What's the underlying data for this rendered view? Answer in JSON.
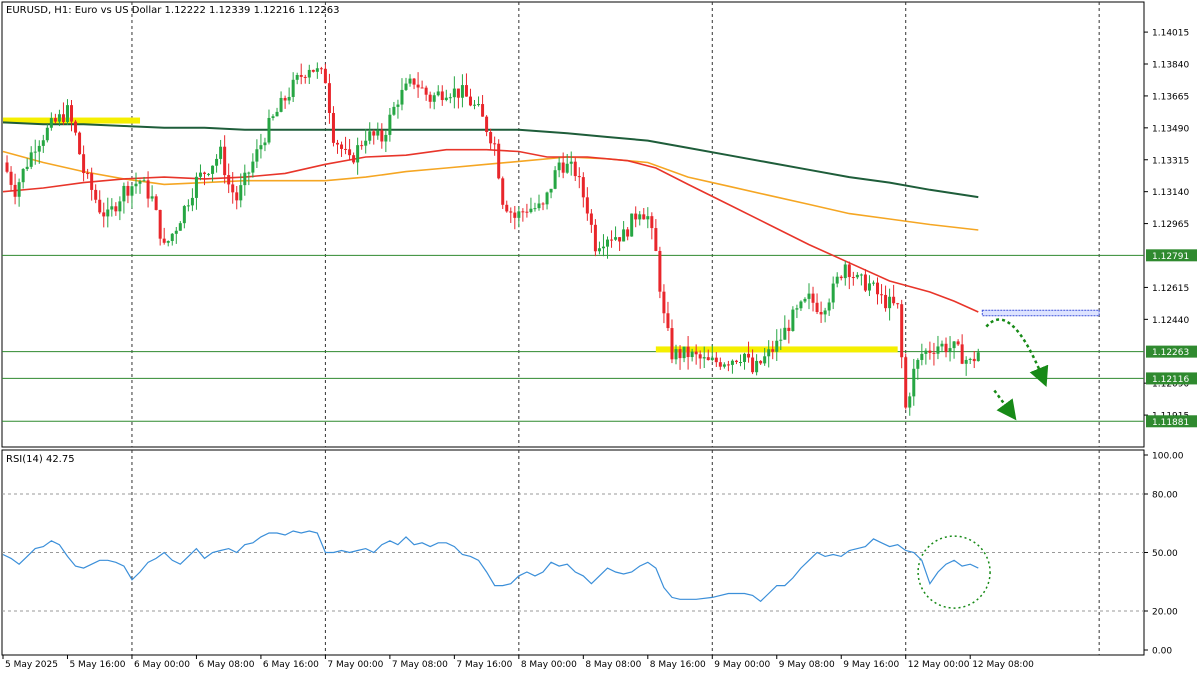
{
  "header": {
    "symbol_info": "EURUSD, H1:  Euro vs US Dollar  1.12222 1.12339 1.12216 1.12263"
  },
  "rsi": {
    "label": "RSI(14) 42.75",
    "ylim": [
      0,
      100
    ],
    "ticks": [
      "100.00",
      "80.00",
      "50.00",
      "20.00",
      "0.00"
    ],
    "tick_values": [
      100,
      80,
      50,
      20,
      0
    ],
    "levels": [
      80,
      50,
      20
    ]
  },
  "colors": {
    "bull": "#26a643",
    "bear": "#e8262b",
    "ma_fast": "#e8352a",
    "ma_mid": "#f5a623",
    "ma_slow": "#1e5d3a",
    "rsi": "#3b8fd9",
    "hline": "#2f8a2f",
    "zone": "#f5ef00",
    "label_bg": "#2f8a2f",
    "arrow": "#178a17",
    "blue_zone": "#3b4fd9"
  },
  "chart_data": {
    "type": "candlestick",
    "price_axis": {
      "ylim": [
        1.1174,
        1.1418
      ],
      "tick_labels": [
        "1.14015",
        "1.13840",
        "1.13665",
        "1.13490",
        "1.13315",
        "1.13140",
        "1.12965",
        "1.12615",
        "1.12440",
        "1.12090",
        "1.11915"
      ],
      "tick_values": [
        1.14015,
        1.1384,
        1.13665,
        1.1349,
        1.13315,
        1.1314,
        1.12965,
        1.12615,
        1.1244,
        1.1209,
        1.11915
      ]
    },
    "time_axis": {
      "bars": 165,
      "labels": [
        {
          "bar": 0,
          "text": "5 May 2025"
        },
        {
          "bar": 16,
          "text": "5 May 16:00"
        },
        {
          "bar": 32,
          "text": "6 May 00:00"
        },
        {
          "bar": 48,
          "text": "6 May 08:00"
        },
        {
          "bar": 64,
          "text": "6 May 16:00"
        },
        {
          "bar": 80,
          "text": "7 May 00:00"
        },
        {
          "bar": 96,
          "text": "7 May 08:00"
        },
        {
          "bar": 112,
          "text": "7 May 16:00"
        },
        {
          "bar": 128,
          "text": "8 May 00:00"
        },
        {
          "bar": 144,
          "text": "8 May 08:00"
        },
        {
          "bar": 160,
          "text": "8 May 16:00"
        },
        {
          "bar": 176,
          "text": "9 May 00:00"
        },
        {
          "bar": 192,
          "text": "9 May 08:00"
        },
        {
          "bar": 208,
          "text": "9 May 16:00"
        },
        {
          "bar": 224,
          "text": "12 May 00:00"
        },
        {
          "bar": 240,
          "text": "12 May 08:00"
        }
      ],
      "day_separators": [
        32,
        80,
        128,
        176,
        224,
        272
      ]
    },
    "horizontal_levels": [
      {
        "price": 1.12791,
        "label": "1.12791"
      },
      {
        "price": 1.12263,
        "label": "1.12263"
      },
      {
        "price": 1.12116,
        "label": "1.12116"
      },
      {
        "price": 1.11881,
        "label": "1.11881"
      }
    ],
    "zones": [
      {
        "from_bar": 0,
        "to_bar": 34,
        "price": 1.1353
      },
      {
        "from_bar": 162,
        "to_bar": 222,
        "price": 1.12275
      }
    ],
    "projected_zone": {
      "from_bar": 243,
      "to_bar": 272,
      "top": 1.1249,
      "bottom": 1.1246
    },
    "ma_fast": [
      [
        0,
        1.1314
      ],
      [
        10,
        1.1316
      ],
      [
        20,
        1.1319
      ],
      [
        30,
        1.1321
      ],
      [
        40,
        1.1322
      ],
      [
        50,
        1.1321
      ],
      [
        60,
        1.1322
      ],
      [
        70,
        1.1324
      ],
      [
        80,
        1.1329
      ],
      [
        90,
        1.1333
      ],
      [
        100,
        1.1334
      ],
      [
        110,
        1.1337
      ],
      [
        120,
        1.1337
      ],
      [
        128,
        1.1336
      ],
      [
        135,
        1.1333
      ],
      [
        145,
        1.1333
      ],
      [
        155,
        1.1331
      ],
      [
        162,
        1.1327
      ],
      [
        170,
        1.1318
      ],
      [
        180,
        1.1307
      ],
      [
        190,
        1.1296
      ],
      [
        200,
        1.1285
      ],
      [
        210,
        1.1275
      ],
      [
        220,
        1.1265
      ],
      [
        230,
        1.1259
      ],
      [
        236,
        1.1254
      ],
      [
        242,
        1.1248
      ]
    ],
    "ma_mid": [
      [
        0,
        1.1336
      ],
      [
        10,
        1.133
      ],
      [
        20,
        1.1325
      ],
      [
        30,
        1.1321
      ],
      [
        40,
        1.1318
      ],
      [
        50,
        1.1319
      ],
      [
        60,
        1.132
      ],
      [
        70,
        1.132
      ],
      [
        80,
        1.132
      ],
      [
        90,
        1.1322
      ],
      [
        100,
        1.1325
      ],
      [
        110,
        1.1327
      ],
      [
        120,
        1.1329
      ],
      [
        130,
        1.1331
      ],
      [
        140,
        1.1333
      ],
      [
        150,
        1.1332
      ],
      [
        160,
        1.133
      ],
      [
        170,
        1.1322
      ],
      [
        180,
        1.1317
      ],
      [
        190,
        1.1312
      ],
      [
        200,
        1.1307
      ],
      [
        210,
        1.1302
      ],
      [
        220,
        1.1299
      ],
      [
        230,
        1.1296
      ],
      [
        242,
        1.1293
      ]
    ],
    "ma_slow": [
      [
        0,
        1.1352
      ],
      [
        10,
        1.1351
      ],
      [
        20,
        1.1351
      ],
      [
        30,
        1.135
      ],
      [
        40,
        1.1349
      ],
      [
        50,
        1.1349
      ],
      [
        60,
        1.1348
      ],
      [
        70,
        1.1348
      ],
      [
        80,
        1.1348
      ],
      [
        90,
        1.1348
      ],
      [
        100,
        1.1348
      ],
      [
        110,
        1.1348
      ],
      [
        120,
        1.1348
      ],
      [
        128,
        1.1348
      ],
      [
        140,
        1.1346
      ],
      [
        150,
        1.1344
      ],
      [
        160,
        1.1342
      ],
      [
        170,
        1.1338
      ],
      [
        180,
        1.1334
      ],
      [
        190,
        1.133
      ],
      [
        200,
        1.1326
      ],
      [
        210,
        1.1322
      ],
      [
        220,
        1.1319
      ],
      [
        230,
        1.1315
      ],
      [
        242,
        1.1311
      ]
    ],
    "price_path": [
      [
        0,
        1.133
      ],
      [
        3,
        1.1315
      ],
      [
        8,
        1.134
      ],
      [
        12,
        1.135
      ],
      [
        16,
        1.1358
      ],
      [
        18,
        1.1345
      ],
      [
        20,
        1.1325
      ],
      [
        24,
        1.1305
      ],
      [
        26,
        1.13
      ],
      [
        30,
        1.1315
      ],
      [
        34,
        1.132
      ],
      [
        37,
        1.131
      ],
      [
        40,
        1.1283
      ],
      [
        43,
        1.1295
      ],
      [
        48,
        1.132
      ],
      [
        52,
        1.133
      ],
      [
        54,
        1.1335
      ],
      [
        56,
        1.1318
      ],
      [
        58,
        1.131
      ],
      [
        62,
        1.133
      ],
      [
        66,
        1.135
      ],
      [
        70,
        1.1365
      ],
      [
        73,
        1.1375
      ],
      [
        76,
        1.1383
      ],
      [
        80,
        1.1376
      ],
      [
        82,
        1.1345
      ],
      [
        86,
        1.133
      ],
      [
        90,
        1.1345
      ],
      [
        94,
        1.1343
      ],
      [
        98,
        1.1365
      ],
      [
        102,
        1.1375
      ],
      [
        106,
        1.1365
      ],
      [
        110,
        1.137
      ],
      [
        114,
        1.1368
      ],
      [
        118,
        1.1358
      ],
      [
        122,
        1.134
      ],
      [
        124,
        1.131
      ],
      [
        127,
        1.13
      ],
      [
        130,
        1.1305
      ],
      [
        134,
        1.1305
      ],
      [
        138,
        1.133
      ],
      [
        142,
        1.1325
      ],
      [
        145,
        1.1305
      ],
      [
        147,
        1.1285
      ],
      [
        150,
        1.129
      ],
      [
        154,
        1.129
      ],
      [
        158,
        1.1305
      ],
      [
        160,
        1.13
      ],
      [
        162,
        1.128
      ],
      [
        164,
        1.1245
      ],
      [
        166,
        1.1225
      ],
      [
        170,
        1.1225
      ],
      [
        175,
        1.122
      ],
      [
        180,
        1.1222
      ],
      [
        184,
        1.1225
      ],
      [
        186,
        1.1215
      ],
      [
        188,
        1.122
      ],
      [
        192,
        1.123
      ],
      [
        196,
        1.1245
      ],
      [
        200,
        1.1255
      ],
      [
        203,
        1.125
      ],
      [
        206,
        1.126
      ],
      [
        209,
        1.1275
      ],
      [
        212,
        1.1265
      ],
      [
        215,
        1.1263
      ],
      [
        218,
        1.1255
      ],
      [
        222,
        1.125
      ],
      [
        224,
        1.1195
      ],
      [
        226,
        1.1215
      ],
      [
        228,
        1.1225
      ],
      [
        232,
        1.123
      ],
      [
        236,
        1.1228
      ],
      [
        240,
        1.122
      ],
      [
        242,
        1.1226
      ]
    ],
    "rsi_path": [
      [
        0,
        49
      ],
      [
        2,
        47
      ],
      [
        4,
        44
      ],
      [
        6,
        48
      ],
      [
        8,
        52
      ],
      [
        10,
        53
      ],
      [
        12,
        56
      ],
      [
        14,
        54
      ],
      [
        16,
        48
      ],
      [
        18,
        43
      ],
      [
        20,
        42
      ],
      [
        22,
        44
      ],
      [
        24,
        46
      ],
      [
        26,
        46
      ],
      [
        28,
        45
      ],
      [
        30,
        43
      ],
      [
        32,
        36
      ],
      [
        34,
        40
      ],
      [
        36,
        45
      ],
      [
        38,
        47
      ],
      [
        40,
        50
      ],
      [
        42,
        46
      ],
      [
        44,
        44
      ],
      [
        46,
        48
      ],
      [
        48,
        52
      ],
      [
        50,
        47
      ],
      [
        52,
        50
      ],
      [
        54,
        51
      ],
      [
        56,
        52
      ],
      [
        58,
        50
      ],
      [
        60,
        54
      ],
      [
        62,
        55
      ],
      [
        64,
        58
      ],
      [
        66,
        60
      ],
      [
        68,
        60
      ],
      [
        70,
        59
      ],
      [
        72,
        61
      ],
      [
        74,
        60
      ],
      [
        76,
        61
      ],
      [
        78,
        60
      ],
      [
        80,
        50
      ],
      [
        82,
        50
      ],
      [
        84,
        51
      ],
      [
        86,
        50
      ],
      [
        88,
        51
      ],
      [
        90,
        52
      ],
      [
        92,
        50
      ],
      [
        94,
        54
      ],
      [
        96,
        56
      ],
      [
        98,
        54
      ],
      [
        100,
        58
      ],
      [
        102,
        54
      ],
      [
        104,
        55
      ],
      [
        106,
        53
      ],
      [
        108,
        55
      ],
      [
        110,
        55
      ],
      [
        112,
        53
      ],
      [
        114,
        49
      ],
      [
        116,
        48
      ],
      [
        118,
        46
      ],
      [
        120,
        40
      ],
      [
        122,
        33
      ],
      [
        124,
        33
      ],
      [
        126,
        34
      ],
      [
        128,
        38
      ],
      [
        130,
        40
      ],
      [
        132,
        38
      ],
      [
        134,
        40
      ],
      [
        136,
        45
      ],
      [
        138,
        43
      ],
      [
        140,
        44
      ],
      [
        142,
        40
      ],
      [
        144,
        38
      ],
      [
        146,
        34
      ],
      [
        148,
        38
      ],
      [
        150,
        42
      ],
      [
        152,
        40
      ],
      [
        154,
        39
      ],
      [
        156,
        40
      ],
      [
        158,
        43
      ],
      [
        160,
        45
      ],
      [
        162,
        42
      ],
      [
        164,
        32
      ],
      [
        166,
        27
      ],
      [
        168,
        26
      ],
      [
        172,
        26
      ],
      [
        176,
        27
      ],
      [
        180,
        29
      ],
      [
        184,
        29
      ],
      [
        186,
        28
      ],
      [
        188,
        25
      ],
      [
        190,
        29
      ],
      [
        192,
        33
      ],
      [
        194,
        33
      ],
      [
        196,
        37
      ],
      [
        198,
        42
      ],
      [
        200,
        46
      ],
      [
        202,
        50
      ],
      [
        204,
        48
      ],
      [
        206,
        49
      ],
      [
        208,
        48
      ],
      [
        210,
        51
      ],
      [
        212,
        52
      ],
      [
        214,
        53
      ],
      [
        216,
        57
      ],
      [
        218,
        55
      ],
      [
        220,
        53
      ],
      [
        222,
        54
      ],
      [
        224,
        51
      ],
      [
        226,
        50
      ],
      [
        228,
        46
      ],
      [
        230,
        34
      ],
      [
        232,
        40
      ],
      [
        234,
        44
      ],
      [
        236,
        46
      ],
      [
        238,
        43
      ],
      [
        240,
        44
      ],
      [
        242,
        42
      ]
    ],
    "rsi_circle": {
      "bar": 236,
      "rsi": 42
    }
  }
}
